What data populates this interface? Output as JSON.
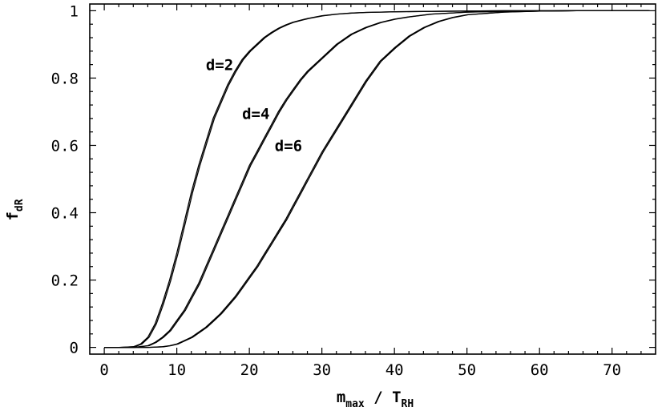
{
  "chart_data": {
    "type": "line",
    "xlabel": {
      "main": "m",
      "main_sub": "max",
      "sep": " / ",
      "denom": "T",
      "denom_sub": "RH"
    },
    "ylabel": {
      "main": "f",
      "sub": "dR"
    },
    "xlim": [
      -2,
      76
    ],
    "ylim": [
      -0.02,
      1.02
    ],
    "xticks": [
      0,
      10,
      20,
      30,
      40,
      50,
      60,
      70
    ],
    "yticks": [
      0,
      0.2,
      0.4,
      0.6,
      0.8,
      1
    ],
    "ytick_labels": [
      "0",
      "0.2",
      "0.4",
      "0.6",
      "0.8",
      "1"
    ],
    "series": [
      {
        "name": "d=2",
        "label_at": [
          14,
          0.84
        ],
        "x": [
          0,
          2,
          4,
          5,
          6,
          7,
          8,
          9,
          10,
          11,
          12,
          13,
          14,
          15,
          16,
          17,
          18,
          19,
          20,
          21,
          22,
          23,
          24,
          25,
          26,
          28,
          30,
          32,
          34,
          36,
          38,
          40,
          45,
          50,
          55,
          60,
          65,
          70,
          75
        ],
        "y": [
          0,
          0,
          0.002,
          0.01,
          0.03,
          0.07,
          0.13,
          0.2,
          0.28,
          0.37,
          0.46,
          0.54,
          0.61,
          0.68,
          0.73,
          0.78,
          0.82,
          0.855,
          0.88,
          0.9,
          0.92,
          0.935,
          0.948,
          0.958,
          0.966,
          0.977,
          0.985,
          0.99,
          0.993,
          0.995,
          0.996,
          0.997,
          0.998,
          0.999,
          1,
          1,
          1,
          1,
          1
        ]
      },
      {
        "name": "d=4",
        "label_at": [
          19,
          0.695
        ],
        "x": [
          0,
          2,
          4,
          6,
          7,
          8,
          9,
          10,
          11,
          12,
          13,
          14,
          15,
          16,
          17,
          18,
          19,
          20,
          21,
          22,
          23,
          24,
          25,
          26,
          27,
          28,
          30,
          32,
          34,
          36,
          38,
          40,
          42,
          45,
          50,
          55,
          60,
          65,
          70,
          75
        ],
        "y": [
          0,
          0,
          0,
          0.005,
          0.015,
          0.03,
          0.05,
          0.08,
          0.11,
          0.15,
          0.19,
          0.24,
          0.29,
          0.34,
          0.39,
          0.44,
          0.49,
          0.54,
          0.58,
          0.62,
          0.66,
          0.7,
          0.735,
          0.765,
          0.795,
          0.82,
          0.86,
          0.9,
          0.93,
          0.95,
          0.965,
          0.975,
          0.982,
          0.99,
          0.996,
          0.998,
          0.999,
          1,
          1,
          1
        ]
      },
      {
        "name": "d=6",
        "label_at": [
          23.5,
          0.6
        ],
        "x": [
          0,
          4,
          6,
          8,
          9,
          10,
          11,
          12,
          13,
          14,
          15,
          16,
          17,
          18,
          19,
          20,
          21,
          22,
          23,
          24,
          25,
          26,
          27,
          28,
          29,
          30,
          32,
          34,
          36,
          38,
          40,
          42,
          44,
          46,
          48,
          50,
          55,
          60,
          65,
          70,
          75
        ],
        "y": [
          0,
          0,
          0,
          0.002,
          0.005,
          0.01,
          0.02,
          0.03,
          0.045,
          0.06,
          0.08,
          0.1,
          0.125,
          0.15,
          0.18,
          0.21,
          0.24,
          0.275,
          0.31,
          0.345,
          0.38,
          0.42,
          0.46,
          0.5,
          0.54,
          0.58,
          0.65,
          0.72,
          0.79,
          0.85,
          0.89,
          0.925,
          0.95,
          0.968,
          0.98,
          0.988,
          0.996,
          0.999,
          1,
          1,
          1
        ]
      }
    ]
  }
}
